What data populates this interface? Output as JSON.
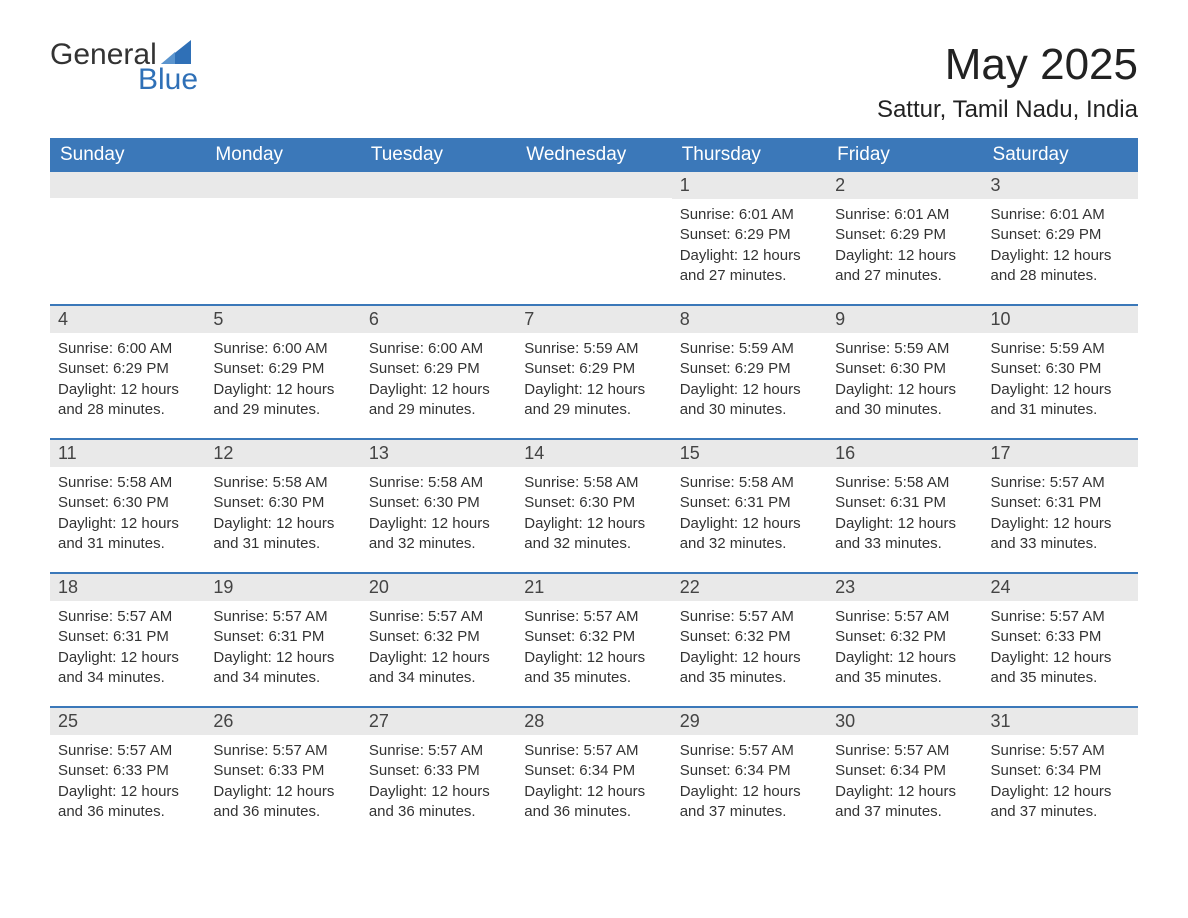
{
  "logo": {
    "text_top": "General",
    "text_bottom": "Blue",
    "triangle_color": "#2f70b7"
  },
  "title": "May 2025",
  "location": "Sattur, Tamil Nadu, India",
  "colors": {
    "header_bg": "#3b78b9",
    "header_text": "#ffffff",
    "daynum_bg": "#e9e9e9",
    "daynum_text": "#444444",
    "border": "#3b78b9",
    "body_text": "#333333",
    "accent": "#2f70b7"
  },
  "weekdays": [
    "Sunday",
    "Monday",
    "Tuesday",
    "Wednesday",
    "Thursday",
    "Friday",
    "Saturday"
  ],
  "weeks": [
    [
      null,
      null,
      null,
      null,
      {
        "d": "1",
        "sunrise": "6:01 AM",
        "sunset": "6:29 PM",
        "daylight": "12 hours and 27 minutes."
      },
      {
        "d": "2",
        "sunrise": "6:01 AM",
        "sunset": "6:29 PM",
        "daylight": "12 hours and 27 minutes."
      },
      {
        "d": "3",
        "sunrise": "6:01 AM",
        "sunset": "6:29 PM",
        "daylight": "12 hours and 28 minutes."
      }
    ],
    [
      {
        "d": "4",
        "sunrise": "6:00 AM",
        "sunset": "6:29 PM",
        "daylight": "12 hours and 28 minutes."
      },
      {
        "d": "5",
        "sunrise": "6:00 AM",
        "sunset": "6:29 PM",
        "daylight": "12 hours and 29 minutes."
      },
      {
        "d": "6",
        "sunrise": "6:00 AM",
        "sunset": "6:29 PM",
        "daylight": "12 hours and 29 minutes."
      },
      {
        "d": "7",
        "sunrise": "5:59 AM",
        "sunset": "6:29 PM",
        "daylight": "12 hours and 29 minutes."
      },
      {
        "d": "8",
        "sunrise": "5:59 AM",
        "sunset": "6:29 PM",
        "daylight": "12 hours and 30 minutes."
      },
      {
        "d": "9",
        "sunrise": "5:59 AM",
        "sunset": "6:30 PM",
        "daylight": "12 hours and 30 minutes."
      },
      {
        "d": "10",
        "sunrise": "5:59 AM",
        "sunset": "6:30 PM",
        "daylight": "12 hours and 31 minutes."
      }
    ],
    [
      {
        "d": "11",
        "sunrise": "5:58 AM",
        "sunset": "6:30 PM",
        "daylight": "12 hours and 31 minutes."
      },
      {
        "d": "12",
        "sunrise": "5:58 AM",
        "sunset": "6:30 PM",
        "daylight": "12 hours and 31 minutes."
      },
      {
        "d": "13",
        "sunrise": "5:58 AM",
        "sunset": "6:30 PM",
        "daylight": "12 hours and 32 minutes."
      },
      {
        "d": "14",
        "sunrise": "5:58 AM",
        "sunset": "6:30 PM",
        "daylight": "12 hours and 32 minutes."
      },
      {
        "d": "15",
        "sunrise": "5:58 AM",
        "sunset": "6:31 PM",
        "daylight": "12 hours and 32 minutes."
      },
      {
        "d": "16",
        "sunrise": "5:58 AM",
        "sunset": "6:31 PM",
        "daylight": "12 hours and 33 minutes."
      },
      {
        "d": "17",
        "sunrise": "5:57 AM",
        "sunset": "6:31 PM",
        "daylight": "12 hours and 33 minutes."
      }
    ],
    [
      {
        "d": "18",
        "sunrise": "5:57 AM",
        "sunset": "6:31 PM",
        "daylight": "12 hours and 34 minutes."
      },
      {
        "d": "19",
        "sunrise": "5:57 AM",
        "sunset": "6:31 PM",
        "daylight": "12 hours and 34 minutes."
      },
      {
        "d": "20",
        "sunrise": "5:57 AM",
        "sunset": "6:32 PM",
        "daylight": "12 hours and 34 minutes."
      },
      {
        "d": "21",
        "sunrise": "5:57 AM",
        "sunset": "6:32 PM",
        "daylight": "12 hours and 35 minutes."
      },
      {
        "d": "22",
        "sunrise": "5:57 AM",
        "sunset": "6:32 PM",
        "daylight": "12 hours and 35 minutes."
      },
      {
        "d": "23",
        "sunrise": "5:57 AM",
        "sunset": "6:32 PM",
        "daylight": "12 hours and 35 minutes."
      },
      {
        "d": "24",
        "sunrise": "5:57 AM",
        "sunset": "6:33 PM",
        "daylight": "12 hours and 35 minutes."
      }
    ],
    [
      {
        "d": "25",
        "sunrise": "5:57 AM",
        "sunset": "6:33 PM",
        "daylight": "12 hours and 36 minutes."
      },
      {
        "d": "26",
        "sunrise": "5:57 AM",
        "sunset": "6:33 PM",
        "daylight": "12 hours and 36 minutes."
      },
      {
        "d": "27",
        "sunrise": "5:57 AM",
        "sunset": "6:33 PM",
        "daylight": "12 hours and 36 minutes."
      },
      {
        "d": "28",
        "sunrise": "5:57 AM",
        "sunset": "6:34 PM",
        "daylight": "12 hours and 36 minutes."
      },
      {
        "d": "29",
        "sunrise": "5:57 AM",
        "sunset": "6:34 PM",
        "daylight": "12 hours and 37 minutes."
      },
      {
        "d": "30",
        "sunrise": "5:57 AM",
        "sunset": "6:34 PM",
        "daylight": "12 hours and 37 minutes."
      },
      {
        "d": "31",
        "sunrise": "5:57 AM",
        "sunset": "6:34 PM",
        "daylight": "12 hours and 37 minutes."
      }
    ]
  ],
  "labels": {
    "sunrise": "Sunrise: ",
    "sunset": "Sunset: ",
    "daylight": "Daylight: "
  }
}
